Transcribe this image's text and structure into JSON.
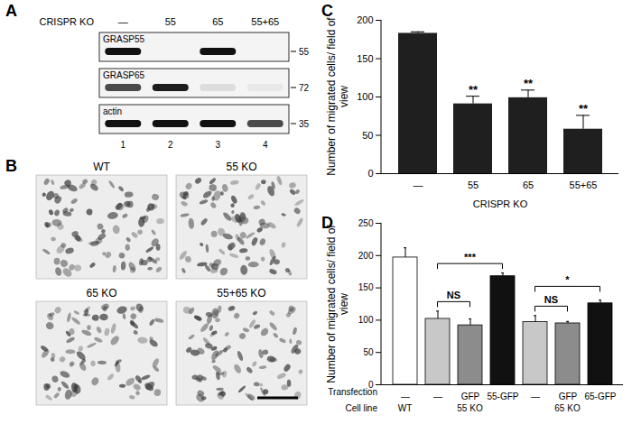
{
  "panels": [
    "A",
    "B",
    "C",
    "D"
  ],
  "blot": {
    "header": "CRISPR KO",
    "lanes": [
      "—",
      "55",
      "65",
      "55+65"
    ],
    "lane_numbers": [
      1,
      2,
      3,
      4
    ],
    "rows": [
      {
        "label": "GRASP55",
        "marker": 55,
        "intensity": [
          1,
          0,
          1,
          0
        ]
      },
      {
        "label": "GRASP65",
        "marker": 72,
        "intensity": [
          0.75,
          0.95,
          0.1,
          0.05
        ]
      },
      {
        "label": "actin",
        "marker": 35,
        "intensity": [
          1,
          1,
          1,
          0.75
        ]
      }
    ]
  },
  "micrographs": {
    "labels": [
      "WT",
      "55 KO",
      "65 KO",
      "55+65 KO"
    ]
  },
  "chart_data": [
    {
      "type": "bar",
      "panel": "C",
      "xlabel": "CRISPR KO",
      "ylabel": "Number of migrated cells/ field of view",
      "categories": [
        "—",
        "55",
        "65",
        "55+65"
      ],
      "values": [
        183,
        91,
        99,
        58
      ],
      "errors": [
        2,
        10,
        10,
        18
      ],
      "significance": [
        null,
        "**",
        "**",
        "**"
      ],
      "color": "#1f1f1f",
      "ylim": [
        0,
        200
      ],
      "yticks": [
        0,
        50,
        100,
        150,
        200
      ],
      "grid": false
    },
    {
      "type": "bar",
      "panel": "D",
      "xlabel": "Transfection",
      "ylabel": "Number of migrated cells/ field of view",
      "categories": [
        "—",
        "—",
        "GFP",
        "55-GFP",
        "—",
        "GFP",
        "65-GFP"
      ],
      "values": [
        197,
        102,
        92,
        168,
        97,
        95,
        126
      ],
      "errors": [
        15,
        12,
        10,
        5,
        10,
        3,
        5
      ],
      "colors": [
        "#ffffff",
        "#c8c8c8",
        "#8c8c8c",
        "#111111",
        "#c8c8c8",
        "#8c8c8c",
        "#111111"
      ],
      "group_label": "Cell line",
      "groups": [
        {
          "label": "WT",
          "from": 0,
          "to": 0
        },
        {
          "label": "55 KO",
          "from": 1,
          "to": 3
        },
        {
          "label": "65 KO",
          "from": 4,
          "to": 6
        }
      ],
      "comparisons": [
        {
          "from": 1,
          "to": 2,
          "label": "NS"
        },
        {
          "from": 1,
          "to": 3,
          "label": "***"
        },
        {
          "from": 4,
          "to": 5,
          "label": "NS"
        },
        {
          "from": 4,
          "to": 6,
          "label": "*"
        }
      ],
      "ylim": [
        0,
        250
      ],
      "yticks": [
        0,
        50,
        100,
        150,
        200,
        250
      ],
      "grid": false
    }
  ]
}
